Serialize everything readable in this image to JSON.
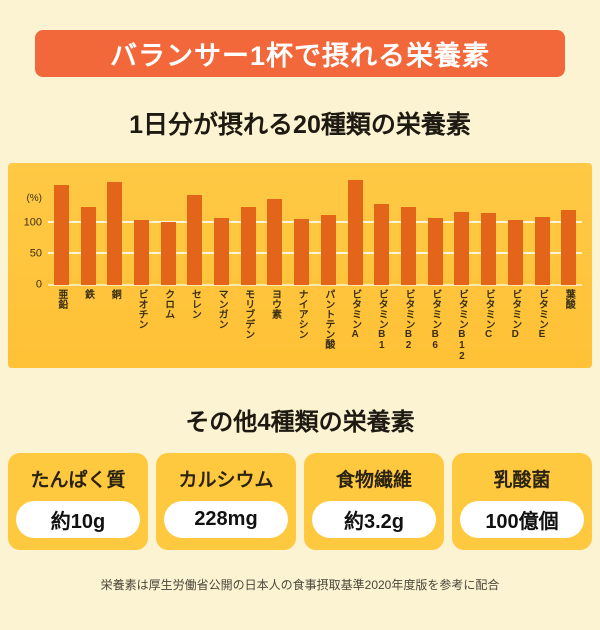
{
  "banner": {
    "title": "バランサー1杯で摂れる栄養素",
    "color": "#F2683B"
  },
  "chart_section": {
    "title": "1日分が摂れる20種類の栄養素"
  },
  "chart_data": {
    "type": "bar",
    "title": "1日分が摂れる20種類の栄養素",
    "unit_label": "(%)",
    "categories": [
      "亜鉛",
      "鉄",
      "銅",
      "ビオチン",
      "クロム",
      "セレン",
      "マンガン",
      "モリブデン",
      "ヨウ素",
      "ナイアシン",
      "パントテン酸",
      "ビタミンA",
      "ビタミンB1",
      "ビタミンB2",
      "ビタミンB6",
      "ビタミンB12",
      "ビタミンC",
      "ビタミンD",
      "ビタミンE",
      "葉酸"
    ],
    "values": [
      160,
      125,
      165,
      105,
      102,
      145,
      108,
      125,
      138,
      106,
      113,
      168,
      130,
      126,
      107,
      117,
      116,
      104,
      110,
      121
    ],
    "yticks": [
      0,
      50,
      100
    ],
    "ylim": [
      0,
      180
    ],
    "grid": true,
    "legend": "none",
    "bar_color": "#E3651A",
    "panel_color": "#FFC945"
  },
  "others_section": {
    "title": "その他4種類の栄養素",
    "cards": [
      {
        "label": "たんぱく質",
        "value": "約10g"
      },
      {
        "label": "カルシウム",
        "value": "228mg"
      },
      {
        "label": "食物繊維",
        "value": "約3.2g"
      },
      {
        "label": "乳酸菌",
        "value": "100億個"
      }
    ]
  },
  "footer": {
    "note": "栄養素は厚生労働省公開の日本人の食事摂取基準2020年度版を参考に配合"
  }
}
